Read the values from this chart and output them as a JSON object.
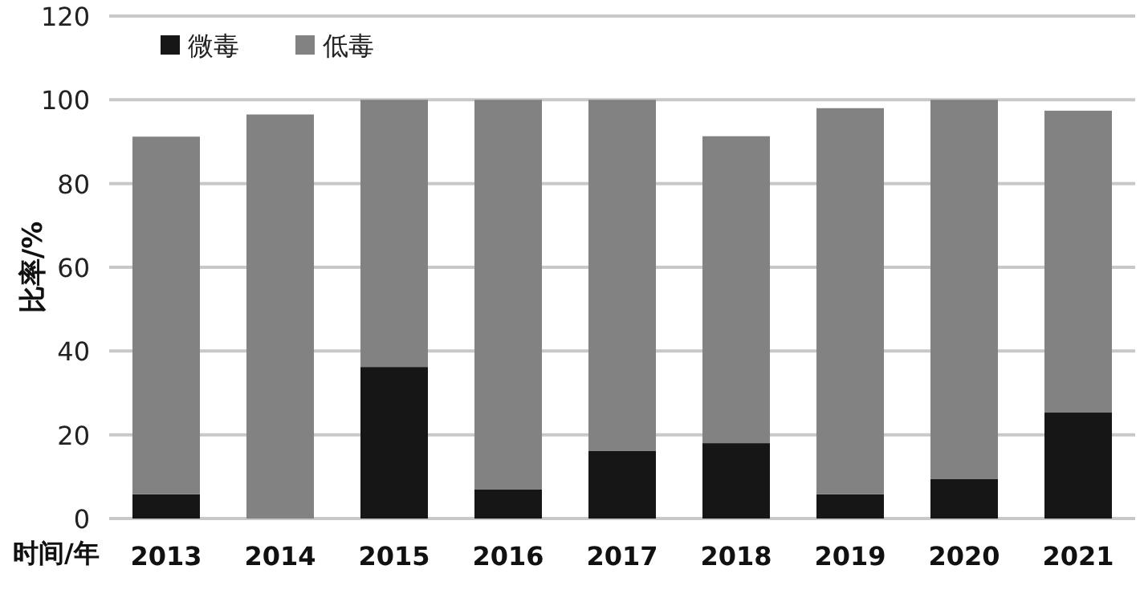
{
  "chart_data": {
    "type": "bar",
    "stacked": true,
    "ylabel": "比率/%",
    "xlabel": "时间/年",
    "categories": [
      "2013",
      "2014",
      "2015",
      "2016",
      "2017",
      "2018",
      "2019",
      "2020",
      "2021"
    ],
    "series": [
      {
        "name": "微毒",
        "color": "#161616",
        "values": [
          5.8,
          0,
          36.2,
          6.9,
          16.2,
          18,
          5.8,
          9.4,
          25.3
        ]
      },
      {
        "name": "低毒",
        "color": "#828282",
        "values": [
          85.4,
          96.5,
          63.8,
          93.1,
          83.8,
          73.3,
          92.2,
          90.6,
          72.1
        ]
      }
    ],
    "ylim": [
      0,
      120
    ],
    "yticks": [
      0,
      20,
      40,
      60,
      80,
      100,
      120
    ],
    "grid": "y",
    "legend": "top left"
  }
}
